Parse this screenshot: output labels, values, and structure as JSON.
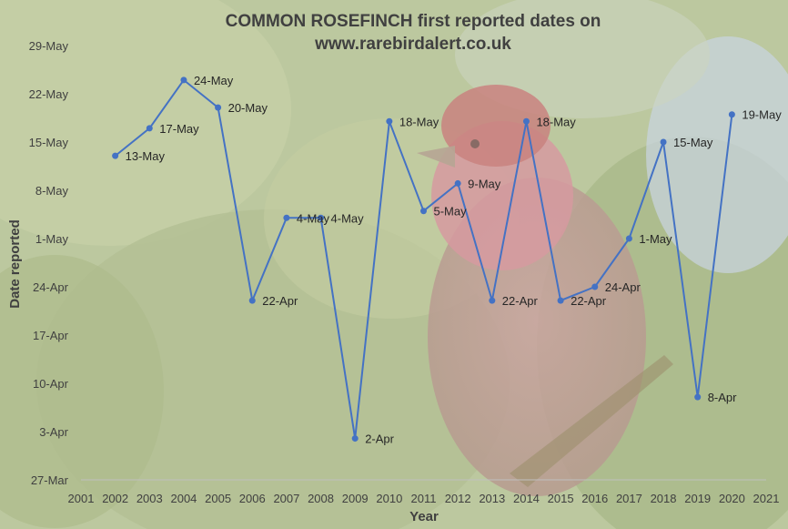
{
  "chart_data": {
    "type": "line",
    "title_line1": "COMMON ROSEFINCH first reported dates on",
    "title_line2": "www.rarebirdalert.co.uk",
    "xlabel": "Year",
    "ylabel": "Date reported",
    "xlim": [
      2001,
      2021
    ],
    "ylim": [
      -35,
      28
    ],
    "y_value_meaning": "day offset relative to 1-May",
    "x_ticks": [
      "2001",
      "2002",
      "2003",
      "2004",
      "2005",
      "2006",
      "2007",
      "2008",
      "2009",
      "2010",
      "2011",
      "2012",
      "2013",
      "2014",
      "2015",
      "2016",
      "2017",
      "2018",
      "2019",
      "2020",
      "2021"
    ],
    "y_ticks": [
      {
        "value": 28,
        "label": "29-May"
      },
      {
        "value": 21,
        "label": "22-May"
      },
      {
        "value": 14,
        "label": "15-May"
      },
      {
        "value": 7,
        "label": "8-May"
      },
      {
        "value": 0,
        "label": "1-May"
      },
      {
        "value": -7,
        "label": "24-Apr"
      },
      {
        "value": -14,
        "label": "17-Apr"
      },
      {
        "value": -21,
        "label": "10-Apr"
      },
      {
        "value": -28,
        "label": "3-Apr"
      },
      {
        "value": -35,
        "label": "27-Mar"
      }
    ],
    "series": [
      {
        "color": "#4472C4",
        "points": [
          {
            "x": 2002,
            "y": 12,
            "label": "13-May"
          },
          {
            "x": 2003,
            "y": 16,
            "label": "17-May"
          },
          {
            "x": 2004,
            "y": 23,
            "label": "24-May"
          },
          {
            "x": 2005,
            "y": 19,
            "label": "20-May"
          },
          {
            "x": 2006,
            "y": -9,
            "label": "22-Apr"
          },
          {
            "x": 2007,
            "y": 3,
            "label": "4-May"
          },
          {
            "x": 2008,
            "y": 3,
            "label": "4-May"
          },
          {
            "x": 2009,
            "y": -29,
            "label": "2-Apr"
          },
          {
            "x": 2010,
            "y": 17,
            "label": "18-May"
          },
          {
            "x": 2011,
            "y": 4,
            "label": "5-May"
          },
          {
            "x": 2012,
            "y": 8,
            "label": "9-May"
          },
          {
            "x": 2013,
            "y": -9,
            "label": "22-Apr"
          },
          {
            "x": 2014,
            "y": 17,
            "label": "18-May"
          },
          {
            "x": 2015,
            "y": -9,
            "label": "22-Apr"
          },
          {
            "x": 2016,
            "y": -7,
            "label": "24-Apr"
          },
          {
            "x": 2017,
            "y": 0,
            "label": "1-May"
          },
          {
            "x": 2018,
            "y": 14,
            "label": "15-May"
          },
          {
            "x": 2019,
            "y": -23,
            "label": "8-Apr"
          },
          {
            "x": 2020,
            "y": 18,
            "label": "19-May"
          }
        ]
      }
    ]
  }
}
